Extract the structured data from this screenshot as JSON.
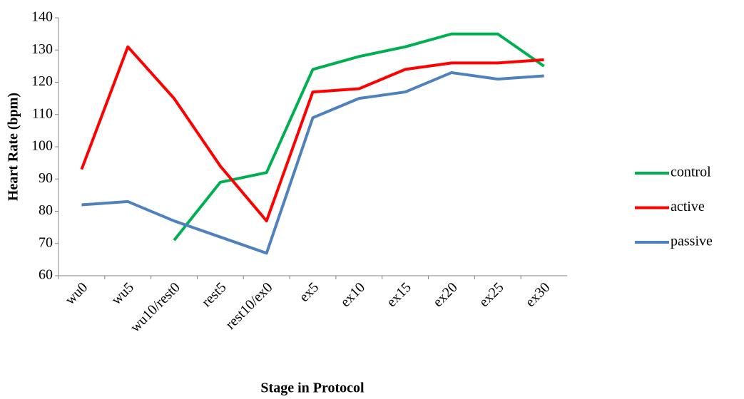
{
  "chart_data": {
    "type": "line",
    "x_label": "Stage in Protocol",
    "y_label": "Heart Rate (bpm)",
    "categories": [
      "wu0",
      "wu5",
      "wu10/rest0",
      "rest5",
      "rest10/ex0",
      "ex5",
      "ex10",
      "ex15",
      "ex20",
      "ex25",
      "ex30"
    ],
    "series": [
      {
        "name": "control",
        "color": "#00b050",
        "values": [
          null,
          null,
          71,
          89,
          92,
          124,
          128,
          131,
          135,
          135,
          125
        ]
      },
      {
        "name": "active",
        "color": "#ff0000",
        "values": [
          93,
          131,
          115,
          94,
          77,
          117,
          118,
          124,
          126,
          126,
          127
        ]
      },
      {
        "name": "passive",
        "color": "#4f81bd",
        "values": [
          82,
          83,
          77,
          72,
          67,
          109,
          115,
          117,
          123,
          121,
          122
        ]
      }
    ],
    "ylim": [
      60,
      140
    ],
    "yticks": [
      60,
      70,
      80,
      90,
      100,
      110,
      120,
      130,
      140
    ],
    "grid": false,
    "legend": "right"
  }
}
